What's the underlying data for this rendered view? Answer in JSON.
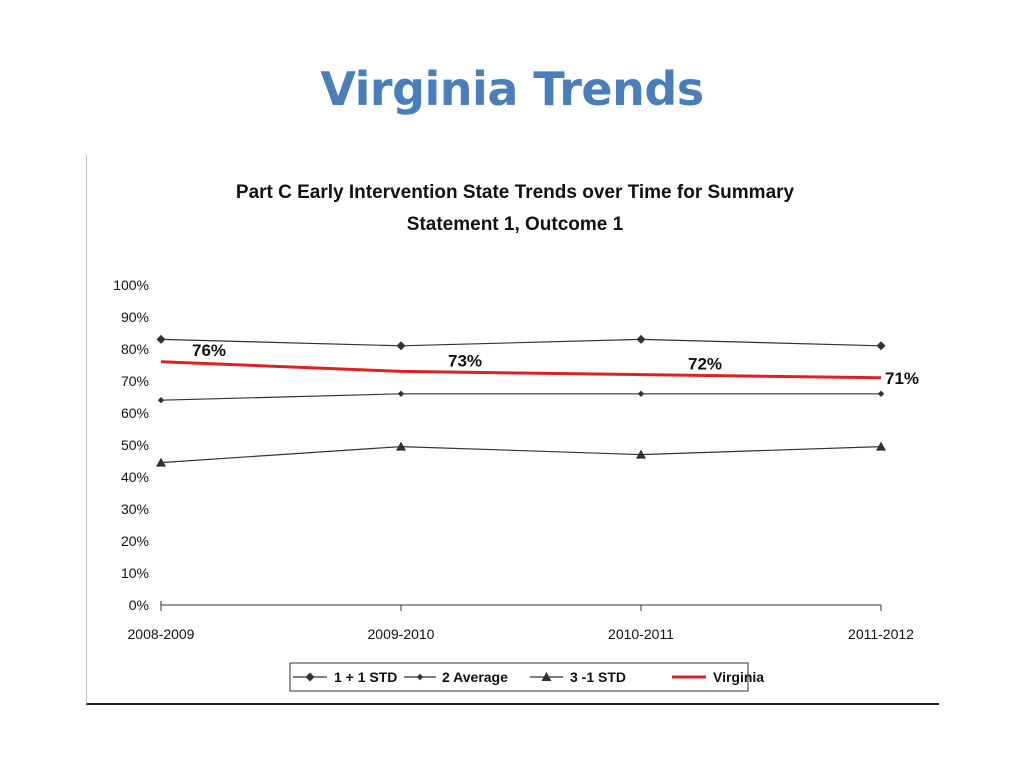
{
  "slide": {
    "title": "Virginia Trends"
  },
  "chart_data": {
    "type": "line",
    "title_lines": [
      "Part C Early Intervention State Trends over Time for Summary",
      "Statement 1, Outcome 1"
    ],
    "xlabel": "",
    "ylabel": "",
    "categories": [
      "2008-2009",
      "2009-2010",
      "2010-2011",
      "2011-2012"
    ],
    "ylim": [
      0,
      100
    ],
    "yticks": [
      "0%",
      "10%",
      "20%",
      "30%",
      "40%",
      "50%",
      "60%",
      "70%",
      "80%",
      "90%",
      "100%"
    ],
    "series": [
      {
        "name": "1 + 1 STD",
        "values": [
          83,
          81,
          83,
          81
        ],
        "color": "#333333",
        "marker": "diamond"
      },
      {
        "name": "2 Average",
        "values": [
          64,
          66,
          66,
          66
        ],
        "color": "#333333",
        "marker": "small-diamond"
      },
      {
        "name": "3 -1 STD",
        "values": [
          44.5,
          49.5,
          47,
          49.5
        ],
        "color": "#333333",
        "marker": "triangle"
      },
      {
        "name": "Virginia",
        "values": [
          76,
          73,
          72,
          71
        ],
        "color": "#e02020",
        "marker": "none",
        "data_labels": [
          "76%",
          "73%",
          "72%",
          "71%"
        ]
      }
    ],
    "legend_position": "bottom",
    "grid": false
  }
}
